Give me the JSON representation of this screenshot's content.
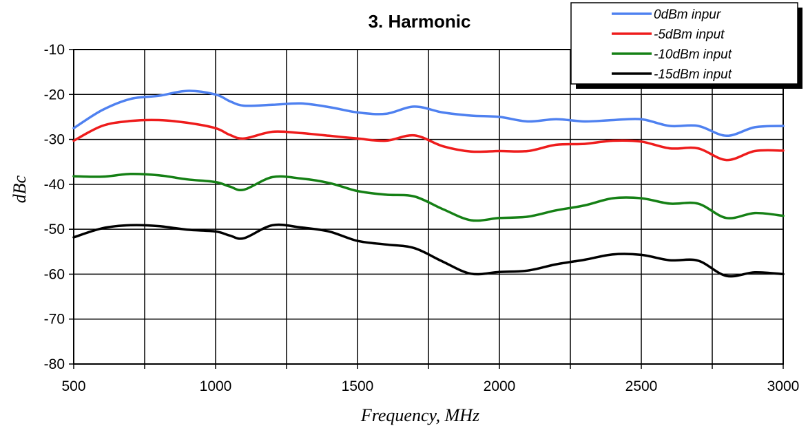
{
  "chart_data": {
    "type": "line",
    "title": "3. Harmonic",
    "xlabel": "Frequency, MHz",
    "ylabel": "dBc",
    "xlim": [
      500,
      3000
    ],
    "ylim": [
      -80,
      -10
    ],
    "xticks": [
      500,
      1000,
      1500,
      2000,
      2500,
      3000
    ],
    "xgrid": [
      500,
      750,
      1000,
      1250,
      1500,
      1750,
      2000,
      2250,
      2500,
      2750,
      3000
    ],
    "yticks": [
      -10,
      -20,
      -30,
      -40,
      -50,
      -60,
      -70,
      -80
    ],
    "grid": true,
    "legend_position": "top-right",
    "series": [
      {
        "name": "0dBm inpur",
        "color": "#4F81F0",
        "x": [
          500,
          600,
          700,
          800,
          900,
          1000,
          1050,
          1100,
          1200,
          1300,
          1400,
          1500,
          1600,
          1700,
          1800,
          1900,
          2000,
          2100,
          2200,
          2300,
          2400,
          2500,
          2600,
          2700,
          2800,
          2900,
          3000
        ],
        "values": [
          -27.5,
          -23.5,
          -21,
          -20.3,
          -19.2,
          -20,
          -21.5,
          -22.5,
          -22.3,
          -22,
          -22.8,
          -24,
          -24.3,
          -22.7,
          -24,
          -24.7,
          -25,
          -26,
          -25.5,
          -26,
          -25.7,
          -25.5,
          -27,
          -27,
          -29.2,
          -27.3,
          -27
        ]
      },
      {
        "name": "-5dBm input",
        "color": "#EE1C1C",
        "x": [
          500,
          600,
          700,
          800,
          900,
          1000,
          1050,
          1100,
          1200,
          1300,
          1400,
          1500,
          1600,
          1700,
          1800,
          1900,
          2000,
          2100,
          2200,
          2300,
          2400,
          2500,
          2600,
          2700,
          2800,
          2900,
          3000
        ],
        "values": [
          -30.3,
          -27,
          -25.9,
          -25.7,
          -26.3,
          -27.5,
          -29,
          -29.8,
          -28.3,
          -28.6,
          -29.2,
          -29.8,
          -30.3,
          -29.1,
          -31.5,
          -32.7,
          -32.6,
          -32.6,
          -31.2,
          -31,
          -30.3,
          -30.5,
          -32,
          -32,
          -34.6,
          -32.6,
          -32.5
        ]
      },
      {
        "name": "-10dBm input",
        "color": "#158015",
        "x": [
          500,
          600,
          700,
          800,
          900,
          1000,
          1050,
          1100,
          1200,
          1300,
          1400,
          1500,
          1600,
          1700,
          1800,
          1900,
          2000,
          2100,
          2200,
          2300,
          2400,
          2500,
          2600,
          2700,
          2800,
          2900,
          3000
        ],
        "values": [
          -38.2,
          -38.3,
          -37.7,
          -38,
          -38.9,
          -39.5,
          -40.5,
          -41.2,
          -38.4,
          -38.7,
          -39.7,
          -41.5,
          -42.3,
          -42.7,
          -45.5,
          -48,
          -47.5,
          -47.2,
          -45.8,
          -44.7,
          -43.1,
          -43.1,
          -44.3,
          -44.3,
          -47.5,
          -46.4,
          -47
        ]
      },
      {
        "name": "-15dBm input",
        "color": "#000000",
        "x": [
          500,
          600,
          700,
          800,
          900,
          1000,
          1050,
          1100,
          1200,
          1300,
          1400,
          1500,
          1600,
          1700,
          1800,
          1900,
          2000,
          2100,
          2200,
          2300,
          2400,
          2500,
          2600,
          2700,
          2800,
          2900,
          3000
        ],
        "values": [
          -51.8,
          -49.8,
          -49.1,
          -49.3,
          -50.1,
          -50.5,
          -51.4,
          -52,
          -49.1,
          -49.6,
          -50.5,
          -52.6,
          -53.4,
          -54.2,
          -57.2,
          -59.9,
          -59.5,
          -59.2,
          -57.8,
          -56.8,
          -55.6,
          -55.7,
          -56.9,
          -57,
          -60.4,
          -59.6,
          -60
        ]
      }
    ]
  }
}
